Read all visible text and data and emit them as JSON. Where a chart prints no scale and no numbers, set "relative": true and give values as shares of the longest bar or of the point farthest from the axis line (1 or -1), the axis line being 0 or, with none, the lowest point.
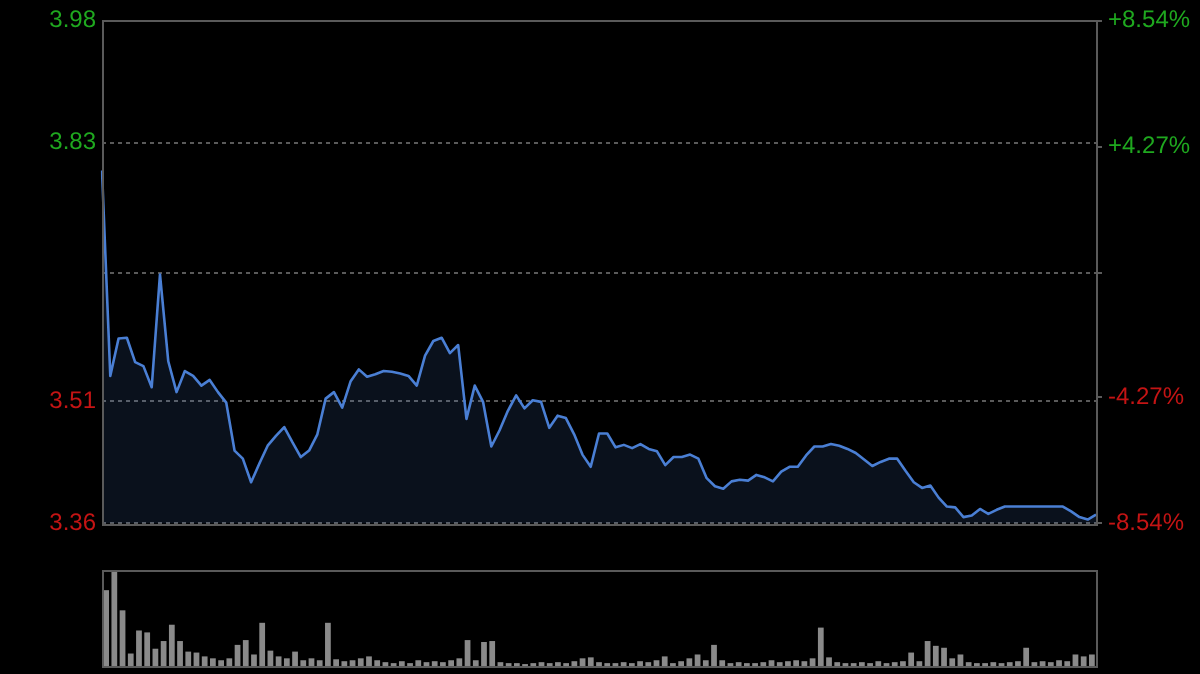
{
  "chart_data": [
    {
      "type": "area",
      "legend": false,
      "grid": "y",
      "tick_labels": "y",
      "marker": "none",
      "categories": [
        null,
        null,
        null,
        null,
        null,
        null,
        null,
        null,
        null,
        null,
        null,
        null,
        null,
        null,
        null,
        null,
        null,
        null,
        null,
        null,
        null,
        null,
        null,
        null,
        null,
        null,
        null,
        null,
        null,
        null,
        null,
        null,
        null,
        null,
        null,
        null,
        null,
        null,
        null,
        null,
        null,
        null,
        null,
        null,
        null,
        null,
        null,
        null,
        null,
        null,
        null,
        null,
        null,
        null,
        null,
        null,
        null,
        null,
        null,
        null,
        null,
        null,
        null,
        null,
        null,
        null,
        null,
        null,
        null,
        null,
        null,
        null,
        null,
        null,
        null,
        null,
        null,
        null,
        null,
        null,
        null,
        null,
        null,
        null,
        null,
        null,
        null,
        null,
        null,
        null,
        null,
        null,
        null,
        null,
        null,
        null,
        null,
        null,
        null,
        null,
        null,
        null,
        null,
        null,
        null,
        null,
        null,
        null,
        null,
        null,
        null,
        null,
        null,
        null,
        null,
        null,
        null,
        null,
        null,
        null,
        null
      ],
      "series": [
        {
          "color": "#4a7fd4",
          "values": [
            3.795,
            3.542,
            3.588,
            3.589,
            3.559,
            3.554,
            3.528,
            3.667,
            3.56,
            3.522,
            3.548,
            3.542,
            3.53,
            3.537,
            3.522,
            3.509,
            3.45,
            3.44,
            3.411,
            3.434,
            3.456,
            3.468,
            3.479,
            3.46,
            3.442,
            3.45,
            3.47,
            3.514,
            3.522,
            3.503,
            3.535,
            3.55,
            3.541,
            3.544,
            3.548,
            3.547,
            3.545,
            3.542,
            3.53,
            3.567,
            3.585,
            3.589,
            3.57,
            3.58,
            3.489,
            3.53,
            3.51,
            3.455,
            3.475,
            3.499,
            3.518,
            3.502,
            3.512,
            3.51,
            3.478,
            3.493,
            3.49,
            3.47,
            3.445,
            3.43,
            3.471,
            3.471,
            3.454,
            3.457,
            3.453,
            3.458,
            3.452,
            3.449,
            3.432,
            3.442,
            3.442,
            3.445,
            3.44,
            3.416,
            3.406,
            3.403,
            3.412,
            3.414,
            3.413,
            3.42,
            3.417,
            3.412,
            3.424,
            3.43,
            3.43,
            3.444,
            3.455,
            3.455,
            3.458,
            3.456,
            3.452,
            3.447,
            3.439,
            3.431,
            3.436,
            3.44,
            3.44,
            3.425,
            3.411,
            3.404,
            3.407,
            3.392,
            3.381,
            3.38,
            3.368,
            3.37,
            3.378,
            3.372,
            3.377,
            3.381,
            3.381,
            3.381,
            3.381,
            3.381,
            3.381,
            3.381,
            3.381,
            3.375,
            3.368,
            3.365,
            3.371
          ]
        }
      ],
      "ylim": [
        3.36,
        3.98
      ],
      "yticks": [
        3.36,
        3.51,
        {
          "value": 3.67,
          "label": null
        },
        3.83,
        3.98
      ],
      "y2lim": [
        -8.54,
        8.54
      ],
      "y2ticks": [
        {
          "value": -8.54,
          "label": "-8.54%"
        },
        {
          "value": -4.27,
          "label": "-4.27%"
        },
        {
          "value": 0,
          "label": null
        },
        {
          "value": 4.27,
          "label": "+4.27%"
        },
        {
          "value": 8.54,
          "label": "+8.54%"
        }
      ]
    },
    {
      "type": "bar",
      "relative": true,
      "legend": false,
      "tick_labels": false,
      "categories": [
        null,
        null,
        null,
        null,
        null,
        null,
        null,
        null,
        null,
        null,
        null,
        null,
        null,
        null,
        null,
        null,
        null,
        null,
        null,
        null,
        null,
        null,
        null,
        null,
        null,
        null,
        null,
        null,
        null,
        null,
        null,
        null,
        null,
        null,
        null,
        null,
        null,
        null,
        null,
        null,
        null,
        null,
        null,
        null,
        null,
        null,
        null,
        null,
        null,
        null,
        null,
        null,
        null,
        null,
        null,
        null,
        null,
        null,
        null,
        null,
        null,
        null,
        null,
        null,
        null,
        null,
        null,
        null,
        null,
        null,
        null,
        null,
        null,
        null,
        null,
        null,
        null,
        null,
        null,
        null,
        null,
        null,
        null,
        null,
        null,
        null,
        null,
        null,
        null,
        null,
        null,
        null,
        null,
        null,
        null,
        null,
        null,
        null,
        null,
        null,
        null,
        null,
        null,
        null,
        null,
        null,
        null,
        null,
        null,
        null,
        null,
        null,
        null,
        null,
        null,
        null,
        null,
        null,
        null,
        null,
        null
      ],
      "color": "#8a8a8a",
      "values": [
        0.79,
        1,
        0.58,
        0.13,
        0.37,
        0.35,
        0.18,
        0.26,
        0.43,
        0.26,
        0.15,
        0.14,
        0.1,
        0.08,
        0.06,
        0.08,
        0.22,
        0.27,
        0.12,
        0.45,
        0.16,
        0.1,
        0.08,
        0.15,
        0.06,
        0.08,
        0.06,
        0.45,
        0.07,
        0.05,
        0.06,
        0.08,
        0.1,
        0.06,
        0.04,
        0.03,
        0.05,
        0.03,
        0.06,
        0.04,
        0.05,
        0.04,
        0.06,
        0.08,
        0.27,
        0.06,
        0.25,
        0.26,
        0.04,
        0.03,
        0.03,
        0.02,
        0.03,
        0.04,
        0.03,
        0.04,
        0.03,
        0.05,
        0.08,
        0.09,
        0.04,
        0.03,
        0.03,
        0.04,
        0.03,
        0.05,
        0.04,
        0.06,
        0.1,
        0.03,
        0.05,
        0.08,
        0.12,
        0.06,
        0.22,
        0.06,
        0.03,
        0.04,
        0.03,
        0.03,
        0.04,
        0.06,
        0.04,
        0.05,
        0.06,
        0.05,
        0.08,
        0.4,
        0.09,
        0.04,
        0.03,
        0.03,
        0.04,
        0.03,
        0.05,
        0.03,
        0.04,
        0.05,
        0.14,
        0.05,
        0.26,
        0.21,
        0.19,
        0.08,
        0.12,
        0.04,
        0.03,
        0.03,
        0.04,
        0.03,
        0.04,
        0.05,
        0.19,
        0.04,
        0.05,
        0.04,
        0.06,
        0.05,
        0.12,
        0.1,
        0.12
      ]
    }
  ]
}
